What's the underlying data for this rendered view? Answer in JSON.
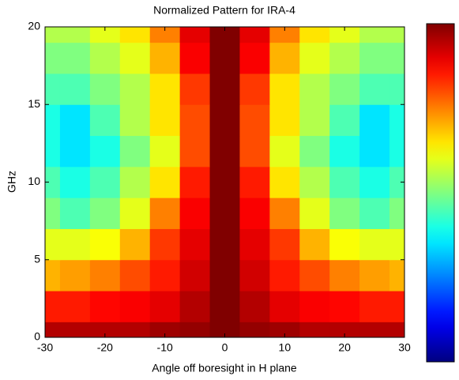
{
  "chart_data": {
    "type": "heatmap",
    "title": "Normalized Pattern for IRA-4",
    "xlabel": "Angle off boresight in H plane",
    "ylabel": "GHz",
    "x": [
      -30,
      -25,
      -20,
      -15,
      -10,
      -5,
      0,
      5,
      10,
      15,
      20,
      25,
      30
    ],
    "y": [
      0,
      2,
      4,
      6,
      8,
      10,
      12,
      14,
      16,
      18,
      20
    ],
    "z": [
      [
        0.95,
        0.95,
        0.95,
        0.95,
        0.97,
        0.98,
        1,
        0.98,
        0.97,
        0.95,
        0.95,
        0.95,
        0.95
      ],
      [
        0.85,
        0.85,
        0.87,
        0.88,
        0.9,
        0.95,
        1,
        0.95,
        0.9,
        0.88,
        0.87,
        0.85,
        0.85
      ],
      [
        0.7,
        0.72,
        0.75,
        0.8,
        0.85,
        0.92,
        1,
        0.92,
        0.85,
        0.8,
        0.75,
        0.72,
        0.7
      ],
      [
        0.6,
        0.6,
        0.62,
        0.7,
        0.82,
        0.9,
        1,
        0.9,
        0.82,
        0.7,
        0.62,
        0.6,
        0.6
      ],
      [
        0.5,
        0.45,
        0.5,
        0.6,
        0.75,
        0.88,
        1,
        0.88,
        0.75,
        0.6,
        0.5,
        0.45,
        0.5
      ],
      [
        0.45,
        0.4,
        0.45,
        0.55,
        0.65,
        0.85,
        1,
        0.85,
        0.65,
        0.55,
        0.45,
        0.4,
        0.45
      ],
      [
        0.4,
        0.35,
        0.4,
        0.5,
        0.6,
        0.8,
        1,
        0.8,
        0.6,
        0.5,
        0.4,
        0.35,
        0.4
      ],
      [
        0.4,
        0.35,
        0.45,
        0.55,
        0.65,
        0.8,
        1,
        0.8,
        0.65,
        0.55,
        0.45,
        0.35,
        0.4
      ],
      [
        0.45,
        0.45,
        0.5,
        0.55,
        0.65,
        0.82,
        1,
        0.82,
        0.65,
        0.55,
        0.5,
        0.45,
        0.45
      ],
      [
        0.5,
        0.5,
        0.55,
        0.6,
        0.7,
        0.88,
        1,
        0.88,
        0.7,
        0.6,
        0.55,
        0.5,
        0.5
      ],
      [
        0.55,
        0.55,
        0.6,
        0.65,
        0.75,
        0.9,
        1,
        0.9,
        0.75,
        0.65,
        0.6,
        0.55,
        0.55
      ]
    ],
    "zlim": [
      0,
      1
    ],
    "colorscale": "jet",
    "xlim": [
      -30,
      30
    ],
    "xticks": [
      -30,
      -20,
      -10,
      0,
      10,
      20,
      30
    ],
    "ylim": [
      0,
      20
    ],
    "yticks": [
      0,
      5,
      10,
      15,
      20
    ]
  }
}
